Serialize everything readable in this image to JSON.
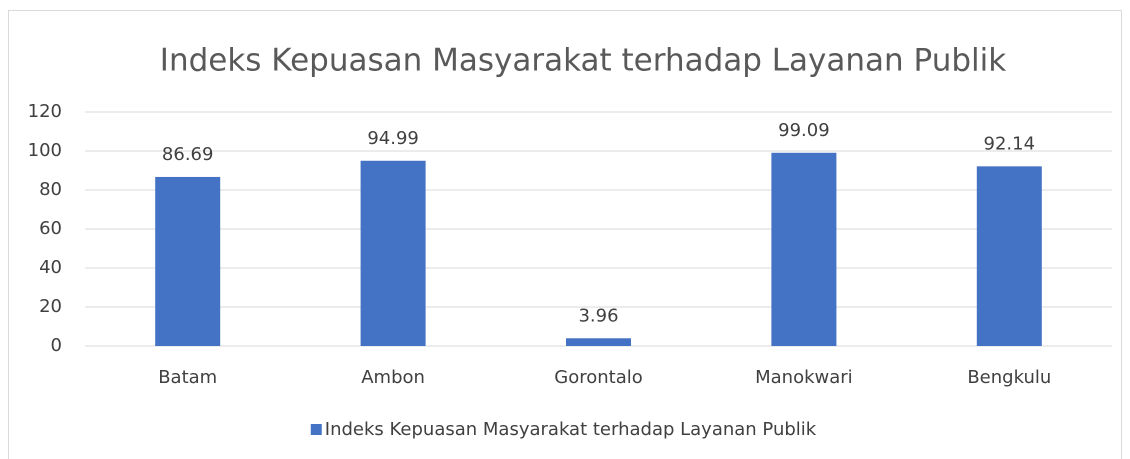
{
  "chart_data": {
    "type": "bar",
    "title": "Indeks Kepuasan Masyarakat terhadap Layanan Publik",
    "categories": [
      "Batam",
      "Ambon",
      "Gorontalo",
      "Manokwari",
      "Bengkulu"
    ],
    "series": [
      {
        "name": "Indeks Kepuasan Masyarakat terhadap Layanan Publik",
        "color": "#4472c4",
        "values": [
          86.69,
          94.99,
          3.96,
          99.09,
          92.14
        ]
      }
    ],
    "ylim": [
      0,
      120
    ],
    "yticks": [
      0,
      20,
      40,
      60,
      80,
      100,
      120
    ],
    "grid": true,
    "legend": "bottom"
  }
}
